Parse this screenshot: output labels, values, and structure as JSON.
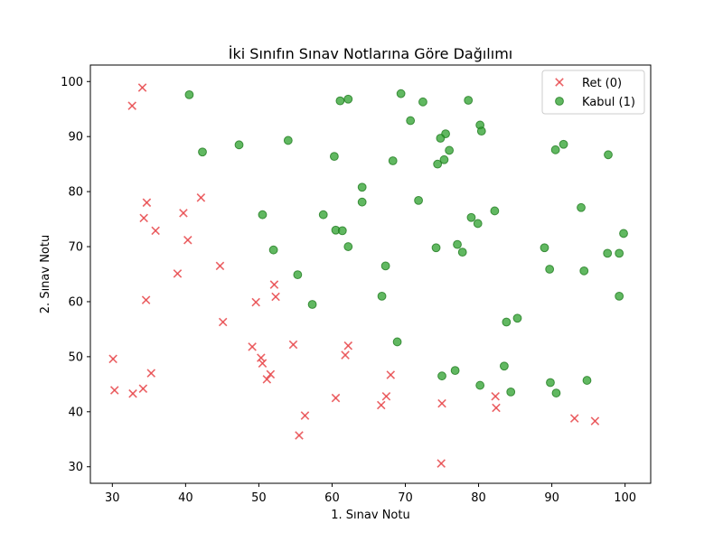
{
  "chart_data": {
    "type": "scatter",
    "title": "İki Sınıfın Sınav Notlarına Göre Dağılımı",
    "xlabel": "1. Sınav Notu",
    "ylabel": "2. Sınav Notu",
    "xlim": [
      27,
      103.5
    ],
    "ylim": [
      27,
      103
    ],
    "xticks": [
      30,
      40,
      50,
      60,
      70,
      80,
      90,
      100
    ],
    "yticks": [
      30,
      40,
      50,
      60,
      70,
      80,
      90,
      100
    ],
    "grid": false,
    "legend_position": "top-right",
    "series": [
      {
        "name": "Ret (0)",
        "marker": "x",
        "color": "#e8474a",
        "points": [
          [
            34.1,
            98.9
          ],
          [
            32.7,
            95.6
          ],
          [
            42.1,
            78.9
          ],
          [
            34.7,
            78.0
          ],
          [
            39.7,
            76.1
          ],
          [
            34.3,
            75.2
          ],
          [
            35.9,
            72.9
          ],
          [
            40.3,
            71.2
          ],
          [
            44.7,
            66.5
          ],
          [
            38.9,
            65.1
          ],
          [
            52.1,
            63.1
          ],
          [
            52.3,
            60.9
          ],
          [
            34.6,
            60.3
          ],
          [
            49.6,
            59.9
          ],
          [
            45.1,
            56.3
          ],
          [
            30.1,
            49.6
          ],
          [
            49.1,
            51.8
          ],
          [
            54.7,
            52.2
          ],
          [
            62.2,
            52.0
          ],
          [
            61.8,
            50.3
          ],
          [
            50.3,
            49.8
          ],
          [
            50.5,
            48.8
          ],
          [
            51.6,
            46.8
          ],
          [
            51.1,
            45.9
          ],
          [
            35.3,
            47.0
          ],
          [
            68.0,
            46.7
          ],
          [
            30.3,
            43.9
          ],
          [
            32.8,
            43.3
          ],
          [
            34.2,
            44.2
          ],
          [
            60.5,
            42.5
          ],
          [
            67.4,
            42.8
          ],
          [
            66.7,
            41.2
          ],
          [
            75.0,
            41.5
          ],
          [
            82.3,
            42.8
          ],
          [
            82.4,
            40.7
          ],
          [
            56.3,
            39.3
          ],
          [
            55.5,
            35.7
          ],
          [
            93.1,
            38.8
          ],
          [
            95.9,
            38.3
          ],
          [
            74.9,
            30.6
          ]
        ]
      },
      {
        "name": "Kabul (1)",
        "marker": "o",
        "color": "#2ca02c",
        "points": [
          [
            40.5,
            97.6
          ],
          [
            69.4,
            97.8
          ],
          [
            61.1,
            96.5
          ],
          [
            62.2,
            96.8
          ],
          [
            72.4,
            96.3
          ],
          [
            78.6,
            96.6
          ],
          [
            70.7,
            92.9
          ],
          [
            80.2,
            92.1
          ],
          [
            80.4,
            91.0
          ],
          [
            75.5,
            90.5
          ],
          [
            74.8,
            89.7
          ],
          [
            54.0,
            89.3
          ],
          [
            47.3,
            88.5
          ],
          [
            91.6,
            88.6
          ],
          [
            90.5,
            87.6
          ],
          [
            76.0,
            87.5
          ],
          [
            42.3,
            87.2
          ],
          [
            97.7,
            86.7
          ],
          [
            60.3,
            86.4
          ],
          [
            68.3,
            85.6
          ],
          [
            75.3,
            85.8
          ],
          [
            74.4,
            85.0
          ],
          [
            64.1,
            80.8
          ],
          [
            64.1,
            78.1
          ],
          [
            71.8,
            78.4
          ],
          [
            94.0,
            77.1
          ],
          [
            82.2,
            76.5
          ],
          [
            58.8,
            75.8
          ],
          [
            50.5,
            75.8
          ],
          [
            79.0,
            75.3
          ],
          [
            79.9,
            74.2
          ],
          [
            60.5,
            73.0
          ],
          [
            61.4,
            72.9
          ],
          [
            99.8,
            72.4
          ],
          [
            77.1,
            70.4
          ],
          [
            62.2,
            70.0
          ],
          [
            74.2,
            69.8
          ],
          [
            89.0,
            69.8
          ],
          [
            52.0,
            69.4
          ],
          [
            77.8,
            69.0
          ],
          [
            97.6,
            68.8
          ],
          [
            99.2,
            68.8
          ],
          [
            67.3,
            66.5
          ],
          [
            89.7,
            65.9
          ],
          [
            94.4,
            65.6
          ],
          [
            55.3,
            64.9
          ],
          [
            66.8,
            61.0
          ],
          [
            99.2,
            61.0
          ],
          [
            57.3,
            59.5
          ],
          [
            85.3,
            57.0
          ],
          [
            83.8,
            56.3
          ],
          [
            68.9,
            52.7
          ],
          [
            83.5,
            48.3
          ],
          [
            76.8,
            47.5
          ],
          [
            75.0,
            46.5
          ],
          [
            89.8,
            45.3
          ],
          [
            94.8,
            45.7
          ],
          [
            80.2,
            44.8
          ],
          [
            84.4,
            43.6
          ],
          [
            90.6,
            43.4
          ]
        ]
      }
    ]
  }
}
